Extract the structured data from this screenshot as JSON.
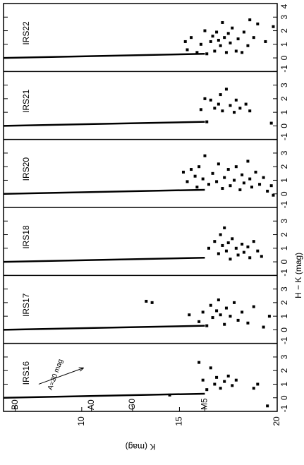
{
  "chart_data": [
    {
      "type": "scatter",
      "title": "IRS22",
      "xlim": [
        6,
        20
      ],
      "ylim": [
        -1,
        4
      ],
      "yticks": [
        -1,
        0,
        1,
        2,
        3,
        4
      ],
      "line": {
        "x": [
          6,
          16.3
        ],
        "y": [
          0,
          0.3
        ]
      },
      "points": {
        "x": [
          15.3,
          15.4,
          15.6,
          15.9,
          16.1,
          16.3,
          16.4,
          16.6,
          16.7,
          16.8,
          16.9,
          17.0,
          17.1,
          17.2,
          17.3,
          17.4,
          17.5,
          17.6,
          17.7,
          17.9,
          18.0,
          18.2,
          18.3,
          18.5,
          18.6,
          18.8,
          19.0,
          19.4,
          19.8
        ],
        "y": [
          1.2,
          0.6,
          1.5,
          0.4,
          1.0,
          2.0,
          0.3,
          1.2,
          1.6,
          0.5,
          1.9,
          1.3,
          0.9,
          2.6,
          1.5,
          0.4,
          1.8,
          1.1,
          2.2,
          0.5,
          1.4,
          0.4,
          1.9,
          0.9,
          2.8,
          1.5,
          2.5,
          1.2,
          2.3
        ]
      }
    },
    {
      "type": "scatter",
      "title": "IRS21",
      "xlim": [
        6,
        20
      ],
      "ylim": [
        -1,
        4
      ],
      "yticks": [
        -1,
        0,
        1,
        2,
        3
      ],
      "line": {
        "x": [
          6,
          16.3
        ],
        "y": [
          0,
          0.3
        ]
      },
      "points": {
        "x": [
          16.1,
          16.3,
          16.4,
          16.6,
          16.8,
          17.0,
          17.1,
          17.2,
          17.4,
          17.6,
          17.8,
          17.9,
          18.1,
          18.4,
          18.6,
          19.7
        ],
        "y": [
          1.2,
          2.0,
          0.3,
          1.9,
          1.3,
          1.6,
          2.3,
          1.1,
          2.7,
          1.5,
          1.0,
          1.9,
          1.3,
          1.6,
          1.1,
          0.2
        ]
      }
    },
    {
      "type": "scatter",
      "title": "IRS20",
      "xlim": [
        6,
        20
      ],
      "ylim": [
        -1,
        4
      ],
      "yticks": [
        -1,
        0,
        1,
        2,
        3
      ],
      "line": {
        "x": [
          6,
          16.3
        ],
        "y": [
          0,
          0.3
        ]
      },
      "points": {
        "x": [
          15.2,
          15.4,
          15.6,
          15.8,
          15.9,
          16.0,
          16.2,
          16.3,
          16.5,
          16.7,
          16.9,
          17.0,
          17.2,
          17.3,
          17.5,
          17.6,
          17.8,
          17.9,
          18.1,
          18.2,
          18.3,
          18.5,
          18.6,
          18.7,
          18.9,
          19.1,
          19.3,
          19.5,
          19.7,
          19.8
        ],
        "y": [
          1.6,
          0.9,
          1.8,
          1.3,
          0.5,
          2.0,
          1.1,
          2.8,
          0.7,
          1.5,
          0.9,
          2.2,
          0.4,
          1.2,
          1.8,
          0.6,
          1.0,
          2.0,
          0.3,
          1.4,
          0.8,
          2.4,
          1.1,
          0.5,
          1.6,
          0.7,
          1.2,
          0.2,
          0.6,
          -0.1
        ]
      }
    },
    {
      "type": "scatter",
      "title": "IRS18",
      "xlim": [
        6,
        20
      ],
      "ylim": [
        -1,
        4
      ],
      "yticks": [
        -1,
        0,
        1,
        2,
        3
      ],
      "ylabel": "H − K (mag)",
      "line": {
        "x": [
          6,
          16.3
        ],
        "y": [
          0,
          0.3
        ]
      },
      "points": {
        "x": [
          16.5,
          16.8,
          17.0,
          17.1,
          17.2,
          17.3,
          17.4,
          17.5,
          17.6,
          17.7,
          17.9,
          18.0,
          18.2,
          18.3,
          18.5,
          18.6,
          18.8,
          19.0,
          19.2
        ],
        "y": [
          1.0,
          1.5,
          0.6,
          2.0,
          1.2,
          2.5,
          0.8,
          1.4,
          0.2,
          1.7,
          1.0,
          0.5,
          1.3,
          0.7,
          1.1,
          0.3,
          1.5,
          0.8,
          0.4
        ]
      }
    },
    {
      "type": "scatter",
      "title": "IRS17",
      "xlim": [
        6,
        20
      ],
      "ylim": [
        -1,
        4
      ],
      "yticks": [
        -1,
        0,
        1,
        2,
        3
      ],
      "line": {
        "x": [
          6,
          16.3
        ],
        "y": [
          0,
          0.3
        ]
      },
      "points": {
        "x": [
          13.3,
          13.6,
          15.5,
          16.0,
          16.2,
          16.4,
          16.6,
          16.7,
          16.9,
          17.0,
          17.1,
          17.3,
          17.4,
          17.6,
          17.8,
          18.0,
          18.2,
          18.5,
          18.8,
          19.3,
          19.6
        ],
        "y": [
          2.1,
          2.0,
          1.1,
          0.6,
          1.3,
          0.3,
          1.8,
          0.9,
          1.4,
          2.2,
          1.1,
          0.4,
          1.6,
          1.0,
          2.0,
          0.7,
          1.3,
          0.5,
          1.7,
          0.2,
          1.0
        ]
      }
    },
    {
      "type": "scatter",
      "title": "IRS16",
      "xlim": [
        6,
        20
      ],
      "ylim": [
        -1,
        4
      ],
      "yticks": [
        -1,
        0,
        1,
        2,
        3
      ],
      "xticks": [
        10,
        15,
        20
      ],
      "xlabel": "K (mag)",
      "line": {
        "x": [
          6,
          16.3
        ],
        "y": [
          0,
          0.3
        ]
      },
      "points": {
        "x": [
          14.5,
          16.0,
          16.2,
          16.4,
          16.6,
          16.8,
          16.9,
          17.1,
          17.3,
          17.5,
          17.7,
          17.9,
          18.8,
          19.0,
          19.5
        ],
        "y": [
          0.2,
          2.6,
          1.3,
          0.6,
          2.2,
          1.0,
          1.5,
          0.7,
          1.2,
          1.6,
          0.9,
          1.3,
          0.7,
          1.0,
          -0.6
        ]
      },
      "spectral_types": {
        "labels": [
          "B0",
          "A0",
          "G0",
          "M5"
        ],
        "x": [
          6.6,
          10.5,
          12.6,
          16.3
        ]
      },
      "reddening_vector": {
        "label": "A=20 mag",
        "x": [
          7.8,
          10.1
        ],
        "y": [
          1.0,
          2.2
        ]
      }
    }
  ]
}
